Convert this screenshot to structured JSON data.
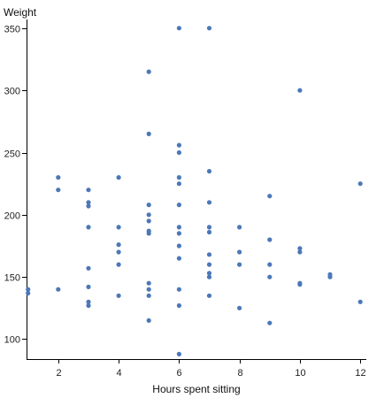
{
  "chart_data": {
    "type": "scatter",
    "xlabel": "Hours spent sitting",
    "ylabel": "Weight",
    "xlim": [
      0.95,
      12.2
    ],
    "ylim": [
      84,
      357
    ],
    "x_ticks": [
      2,
      4,
      6,
      8,
      10,
      12
    ],
    "y_ticks": [
      100,
      150,
      200,
      250,
      300,
      350
    ],
    "grid": false,
    "point_color": "#4C78B8",
    "points": [
      {
        "x": 1,
        "y": 140
      },
      {
        "x": 1,
        "y": 137
      },
      {
        "x": 2,
        "y": 230
      },
      {
        "x": 2,
        "y": 220
      },
      {
        "x": 2,
        "y": 140
      },
      {
        "x": 3,
        "y": 220
      },
      {
        "x": 3,
        "y": 210
      },
      {
        "x": 3,
        "y": 207
      },
      {
        "x": 3,
        "y": 190
      },
      {
        "x": 3,
        "y": 157
      },
      {
        "x": 3,
        "y": 142
      },
      {
        "x": 3,
        "y": 130
      },
      {
        "x": 3,
        "y": 127
      },
      {
        "x": 4,
        "y": 230
      },
      {
        "x": 4,
        "y": 190
      },
      {
        "x": 4,
        "y": 176
      },
      {
        "x": 4,
        "y": 170
      },
      {
        "x": 4,
        "y": 160
      },
      {
        "x": 4,
        "y": 135
      },
      {
        "x": 5,
        "y": 315
      },
      {
        "x": 5,
        "y": 265
      },
      {
        "x": 5,
        "y": 208
      },
      {
        "x": 5,
        "y": 200
      },
      {
        "x": 5,
        "y": 195
      },
      {
        "x": 5,
        "y": 187
      },
      {
        "x": 5,
        "y": 185
      },
      {
        "x": 5,
        "y": 145
      },
      {
        "x": 5,
        "y": 140
      },
      {
        "x": 5,
        "y": 135
      },
      {
        "x": 5,
        "y": 115
      },
      {
        "x": 6,
        "y": 350
      },
      {
        "x": 6,
        "y": 256
      },
      {
        "x": 6,
        "y": 250
      },
      {
        "x": 6,
        "y": 230
      },
      {
        "x": 6,
        "y": 225
      },
      {
        "x": 6,
        "y": 208
      },
      {
        "x": 6,
        "y": 190
      },
      {
        "x": 6,
        "y": 185
      },
      {
        "x": 6,
        "y": 175
      },
      {
        "x": 6,
        "y": 165
      },
      {
        "x": 6,
        "y": 140
      },
      {
        "x": 6,
        "y": 127
      },
      {
        "x": 6,
        "y": 88
      },
      {
        "x": 7,
        "y": 350
      },
      {
        "x": 7,
        "y": 235
      },
      {
        "x": 7,
        "y": 210
      },
      {
        "x": 7,
        "y": 190
      },
      {
        "x": 7,
        "y": 186
      },
      {
        "x": 7,
        "y": 168
      },
      {
        "x": 7,
        "y": 160
      },
      {
        "x": 7,
        "y": 153
      },
      {
        "x": 7,
        "y": 150
      },
      {
        "x": 7,
        "y": 135
      },
      {
        "x": 8,
        "y": 190
      },
      {
        "x": 8,
        "y": 170
      },
      {
        "x": 8,
        "y": 160
      },
      {
        "x": 8,
        "y": 125
      },
      {
        "x": 9,
        "y": 215
      },
      {
        "x": 9,
        "y": 180
      },
      {
        "x": 9,
        "y": 160
      },
      {
        "x": 9,
        "y": 150
      },
      {
        "x": 9,
        "y": 113
      },
      {
        "x": 10,
        "y": 300
      },
      {
        "x": 10,
        "y": 173
      },
      {
        "x": 10,
        "y": 170
      },
      {
        "x": 10,
        "y": 145
      },
      {
        "x": 10,
        "y": 144
      },
      {
        "x": 11,
        "y": 152
      },
      {
        "x": 11,
        "y": 150
      },
      {
        "x": 12,
        "y": 225
      },
      {
        "x": 12,
        "y": 130
      }
    ]
  }
}
